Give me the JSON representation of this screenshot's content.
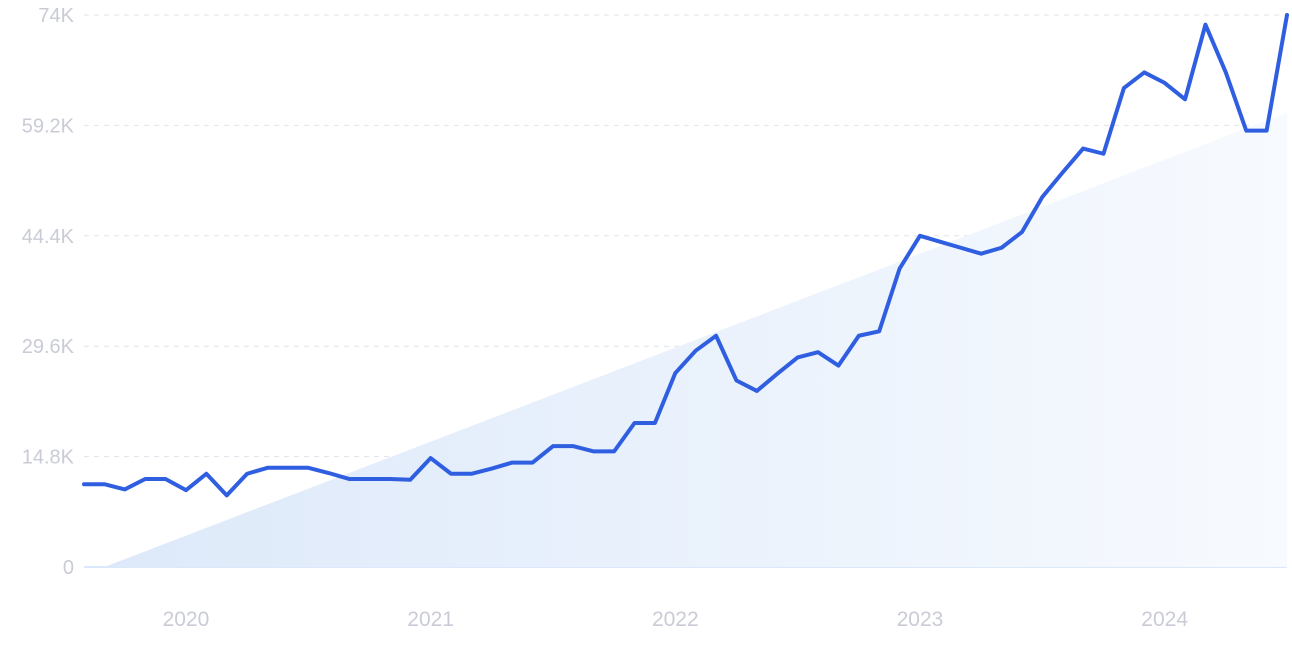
{
  "colors": {
    "line": "#2f5fe0",
    "trend_fill_start": "#dde9fa",
    "trend_fill_end": "#f7fafe",
    "grid": "#dfe3ea",
    "tick_text": "#c9ccd6"
  },
  "chart_data": {
    "type": "line",
    "title": "",
    "xlabel": "",
    "ylabel": "",
    "grid": true,
    "legend": "none",
    "ylim": [
      0,
      74000
    ],
    "yticks": [
      {
        "value": 0,
        "label": "0"
      },
      {
        "value": 14800,
        "label": "14.8K"
      },
      {
        "value": 29600,
        "label": "29.6K"
      },
      {
        "value": 44400,
        "label": "44.4K"
      },
      {
        "value": 59200,
        "label": "59.2K"
      },
      {
        "value": 74000,
        "label": "74K"
      }
    ],
    "xlim": [
      "2019-08",
      "2024-07"
    ],
    "xticks": [
      {
        "value": "2020-01",
        "label": "2020"
      },
      {
        "value": "2021-01",
        "label": "2021"
      },
      {
        "value": "2022-01",
        "label": "2022"
      },
      {
        "value": "2023-01",
        "label": "2023"
      },
      {
        "value": "2024-01",
        "label": "2024"
      }
    ],
    "series": [
      {
        "type": "line",
        "x": [
          "2019-08",
          "2019-09",
          "2019-10",
          "2019-11",
          "2019-12",
          "2020-01",
          "2020-02",
          "2020-03",
          "2020-04",
          "2020-05",
          "2020-06",
          "2020-07",
          "2020-08",
          "2020-09",
          "2020-10",
          "2020-11",
          "2020-12",
          "2021-01",
          "2021-02",
          "2021-03",
          "2021-04",
          "2021-05",
          "2021-06",
          "2021-07",
          "2021-08",
          "2021-09",
          "2021-10",
          "2021-11",
          "2021-12",
          "2022-01",
          "2022-02",
          "2022-03",
          "2022-04",
          "2022-05",
          "2022-06",
          "2022-07",
          "2022-08",
          "2022-09",
          "2022-10",
          "2022-11",
          "2022-12",
          "2023-01",
          "2023-02",
          "2023-03",
          "2023-04",
          "2023-05",
          "2023-06",
          "2023-07",
          "2023-08",
          "2023-09",
          "2023-10",
          "2023-11",
          "2023-12",
          "2024-01",
          "2024-02",
          "2024-03",
          "2024-04",
          "2024-05",
          "2024-06",
          "2024-07"
        ],
        "values": [
          11100,
          11100,
          10400,
          11800,
          11800,
          10300,
          12500,
          9600,
          12500,
          13300,
          13300,
          13300,
          12600,
          11800,
          11800,
          11800,
          11700,
          14600,
          12500,
          12500,
          13200,
          14000,
          14000,
          16200,
          16200,
          15500,
          15500,
          19300,
          19300,
          26000,
          29000,
          31000,
          25000,
          23600,
          25900,
          28100,
          28800,
          27000,
          31000,
          31600,
          40000,
          44400,
          43600,
          42800,
          42000,
          42800,
          44900,
          49600,
          52900,
          56100,
          55400,
          64200,
          66300,
          64900,
          62700,
          72700,
          66300,
          58500,
          58500,
          74000
        ]
      },
      {
        "type": "area",
        "name": "",
        "x": [
          "2019-09",
          "2024-07"
        ],
        "values": [
          0,
          60900
        ]
      }
    ]
  }
}
